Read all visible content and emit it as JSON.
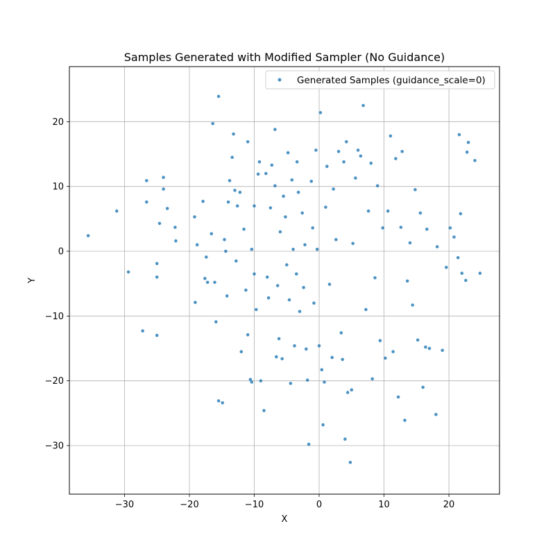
{
  "chart_data": {
    "type": "scatter",
    "title": "Samples Generated with Modified Sampler (No Guidance)",
    "xlabel": "X",
    "ylabel": "Y",
    "xlim": [
      -38.5,
      27.8
    ],
    "ylim": [
      -37.5,
      28.5
    ],
    "xticks": [
      -30,
      -20,
      -10,
      0,
      10,
      20
    ],
    "yticks": [
      -30,
      -20,
      -10,
      0,
      10,
      20
    ],
    "xtick_labels": [
      "−30",
      "−20",
      "−10",
      "0",
      "10",
      "20"
    ],
    "ytick_labels": [
      "−30",
      "−20",
      "−10",
      "0",
      "10",
      "20"
    ],
    "grid": true,
    "legend": {
      "placement": "top-right",
      "entries": [
        "Generated Samples (guidance_scale=0)"
      ]
    },
    "color": "#1f77b4",
    "series": [
      {
        "name": "Generated Samples (guidance_scale=0)",
        "points": [
          [
            -35.6,
            2.4
          ],
          [
            -31.2,
            6.2
          ],
          [
            -29.4,
            -3.2
          ],
          [
            -27.2,
            -12.3
          ],
          [
            -26.6,
            10.9
          ],
          [
            -26.6,
            7.6
          ],
          [
            -25.0,
            -1.9
          ],
          [
            -25.0,
            -4.0
          ],
          [
            -25.0,
            -13.0
          ],
          [
            -24.6,
            4.3
          ],
          [
            -24.0,
            9.6
          ],
          [
            -24.0,
            11.4
          ],
          [
            -23.4,
            6.6
          ],
          [
            -22.2,
            3.7
          ],
          [
            -22.1,
            1.6
          ],
          [
            -19.2,
            5.3
          ],
          [
            -19.1,
            -7.9
          ],
          [
            -18.8,
            1.0
          ],
          [
            -17.9,
            7.7
          ],
          [
            -17.6,
            -4.2
          ],
          [
            -17.4,
            -0.9
          ],
          [
            -17.2,
            -4.8
          ],
          [
            -16.6,
            2.7
          ],
          [
            -16.4,
            19.7
          ],
          [
            -16.1,
            -4.8
          ],
          [
            -15.9,
            -10.9
          ],
          [
            -15.5,
            -23.1
          ],
          [
            -15.5,
            23.9
          ],
          [
            -14.9,
            -23.4
          ],
          [
            -14.6,
            1.8
          ],
          [
            -14.4,
            0.0
          ],
          [
            -14.2,
            -6.9
          ],
          [
            -14.0,
            7.6
          ],
          [
            -13.8,
            10.9
          ],
          [
            -13.4,
            14.5
          ],
          [
            -13.2,
            18.1
          ],
          [
            -13.0,
            9.4
          ],
          [
            -12.8,
            -1.5
          ],
          [
            -12.6,
            7.0
          ],
          [
            -12.2,
            9.1
          ],
          [
            -12.0,
            -15.5
          ],
          [
            -11.6,
            3.4
          ],
          [
            -11.3,
            -6.0
          ],
          [
            -11.0,
            16.9
          ],
          [
            -11.0,
            -12.9
          ],
          [
            -10.6,
            -19.8
          ],
          [
            -10.4,
            -20.2
          ],
          [
            -10.4,
            0.3
          ],
          [
            -10.0,
            7.0
          ],
          [
            -10.0,
            -3.5
          ],
          [
            -9.7,
            -9.0
          ],
          [
            -9.4,
            11.9
          ],
          [
            -9.2,
            13.8
          ],
          [
            -9.0,
            -20.0
          ],
          [
            -8.5,
            -24.6
          ],
          [
            -8.2,
            12.0
          ],
          [
            -8.0,
            -4.0
          ],
          [
            -7.8,
            -7.2
          ],
          [
            -7.5,
            6.7
          ],
          [
            -7.3,
            13.3
          ],
          [
            -6.8,
            18.8
          ],
          [
            -6.8,
            10.1
          ],
          [
            -6.6,
            -16.3
          ],
          [
            -6.4,
            -5.3
          ],
          [
            -6.2,
            -13.5
          ],
          [
            -6.0,
            3.0
          ],
          [
            -5.7,
            -16.6
          ],
          [
            -5.5,
            8.5
          ],
          [
            -5.2,
            5.3
          ],
          [
            -5.0,
            -2.1
          ],
          [
            -4.8,
            15.2
          ],
          [
            -4.6,
            -7.5
          ],
          [
            -4.4,
            -20.4
          ],
          [
            -4.2,
            11.0
          ],
          [
            -4.0,
            0.3
          ],
          [
            -3.8,
            -14.6
          ],
          [
            -3.5,
            -3.5
          ],
          [
            -3.4,
            13.8
          ],
          [
            -3.2,
            9.1
          ],
          [
            -3.0,
            -9.3
          ],
          [
            -2.6,
            5.9
          ],
          [
            -2.4,
            -5.6
          ],
          [
            -2.2,
            1.0
          ],
          [
            -2.0,
            -15.1
          ],
          [
            -1.8,
            -19.9
          ],
          [
            -1.6,
            -29.8
          ],
          [
            -1.2,
            10.8
          ],
          [
            -1.0,
            3.6
          ],
          [
            -0.8,
            -8.0
          ],
          [
            -0.5,
            15.6
          ],
          [
            -0.3,
            0.3
          ],
          [
            0.0,
            -14.6
          ],
          [
            0.2,
            21.4
          ],
          [
            0.4,
            -18.3
          ],
          [
            0.6,
            -26.8
          ],
          [
            0.8,
            -20.2
          ],
          [
            1.0,
            6.8
          ],
          [
            1.2,
            13.1
          ],
          [
            1.6,
            -5.1
          ],
          [
            2.0,
            -16.4
          ],
          [
            2.2,
            9.6
          ],
          [
            2.6,
            1.8
          ],
          [
            3.0,
            15.4
          ],
          [
            3.4,
            -12.6
          ],
          [
            3.6,
            -16.7
          ],
          [
            3.8,
            13.8
          ],
          [
            4.0,
            -29.0
          ],
          [
            4.2,
            16.9
          ],
          [
            4.4,
            -21.8
          ],
          [
            4.8,
            -32.6
          ],
          [
            5.0,
            -21.4
          ],
          [
            5.2,
            1.2
          ],
          [
            5.6,
            11.3
          ],
          [
            6.0,
            15.6
          ],
          [
            6.4,
            14.7
          ],
          [
            6.8,
            22.5
          ],
          [
            7.2,
            -9.0
          ],
          [
            7.6,
            6.2
          ],
          [
            8.0,
            13.6
          ],
          [
            8.2,
            -19.7
          ],
          [
            8.6,
            -4.1
          ],
          [
            9.0,
            10.1
          ],
          [
            9.4,
            -13.8
          ],
          [
            9.8,
            3.6
          ],
          [
            10.2,
            -16.5
          ],
          [
            10.6,
            6.2
          ],
          [
            11.0,
            17.8
          ],
          [
            11.4,
            -15.5
          ],
          [
            11.8,
            14.3
          ],
          [
            12.2,
            -22.5
          ],
          [
            12.6,
            3.7
          ],
          [
            12.8,
            15.4
          ],
          [
            13.2,
            -26.1
          ],
          [
            13.6,
            -4.6
          ],
          [
            14.0,
            1.3
          ],
          [
            14.4,
            -8.3
          ],
          [
            14.8,
            9.5
          ],
          [
            15.2,
            -13.7
          ],
          [
            15.6,
            5.9
          ],
          [
            16.0,
            -21.0
          ],
          [
            16.4,
            -14.8
          ],
          [
            16.6,
            3.4
          ],
          [
            17.0,
            -15.0
          ],
          [
            18.0,
            -25.2
          ],
          [
            18.2,
            0.7
          ],
          [
            19.0,
            -15.3
          ],
          [
            19.6,
            -2.5
          ],
          [
            20.2,
            3.6
          ],
          [
            20.8,
            2.2
          ],
          [
            21.4,
            -1.0
          ],
          [
            21.6,
            18.0
          ],
          [
            21.8,
            5.8
          ],
          [
            22.0,
            -3.4
          ],
          [
            22.6,
            -4.5
          ],
          [
            22.8,
            15.3
          ],
          [
            23.0,
            16.8
          ],
          [
            24.0,
            14.0
          ],
          [
            24.8,
            -3.4
          ]
        ]
      }
    ]
  }
}
